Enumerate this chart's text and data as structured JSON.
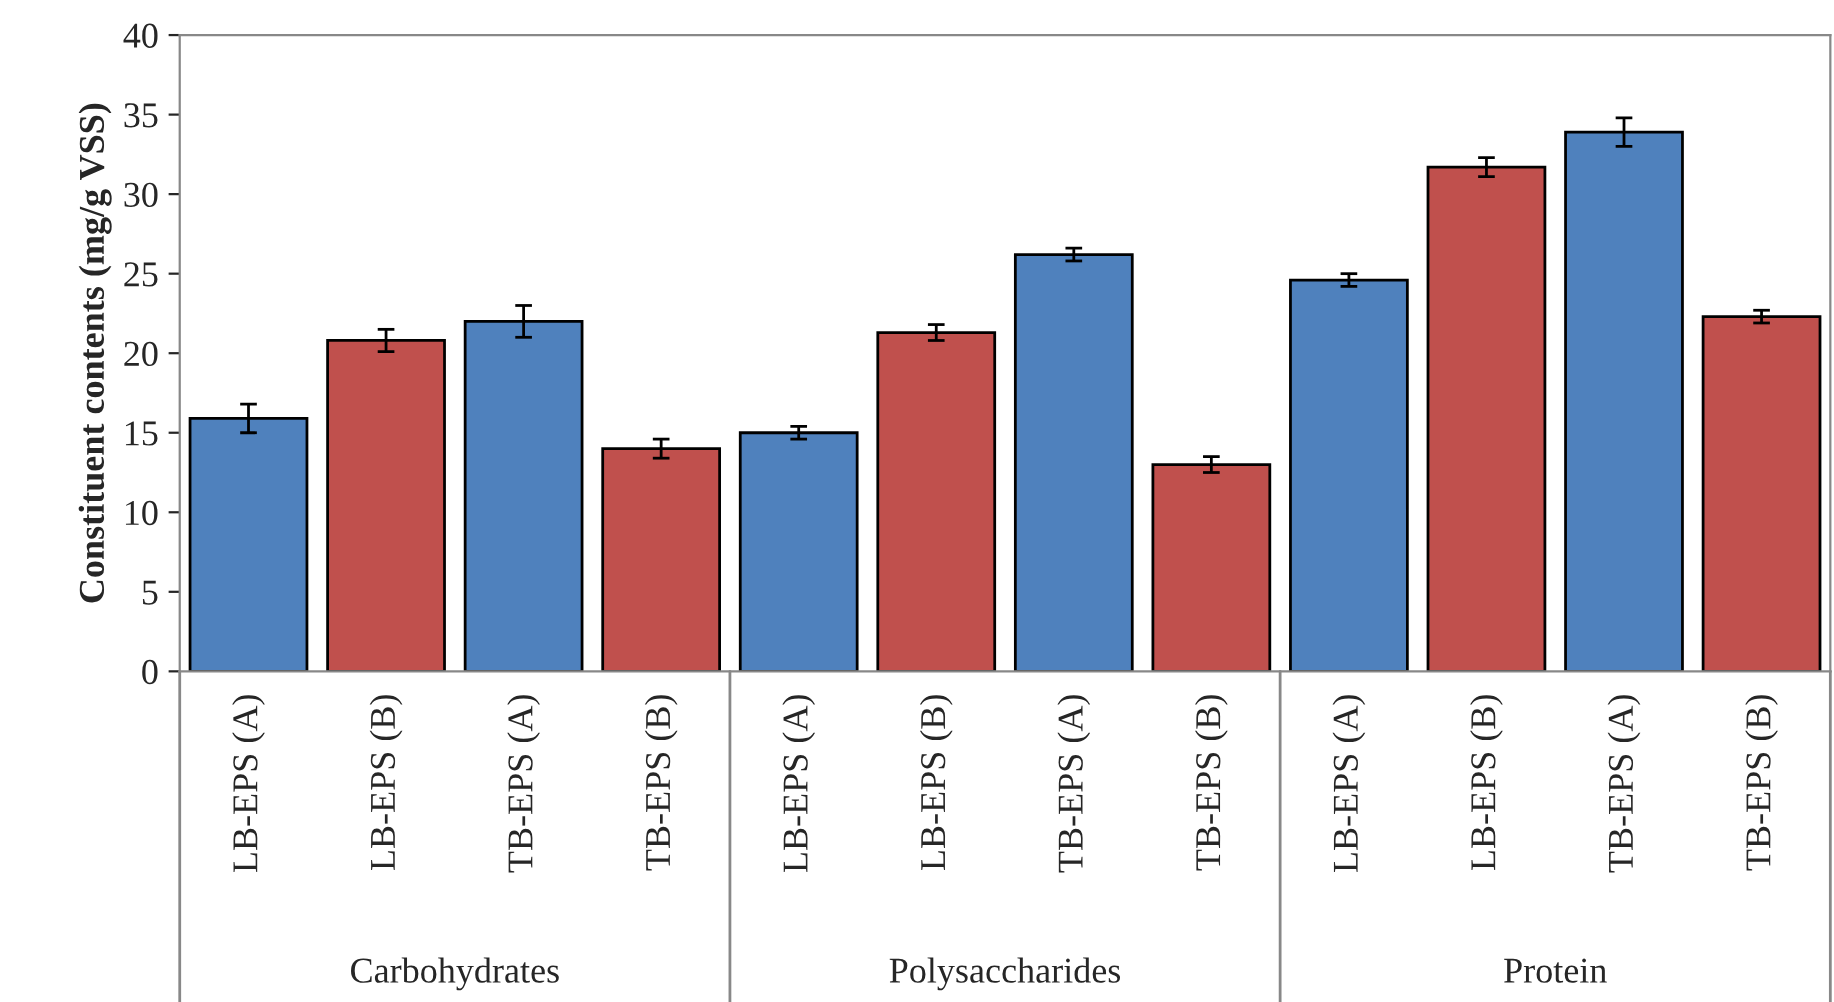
{
  "chart_data": {
    "type": "bar",
    "ylabel": "Constituent contents (mg/g VSS)",
    "categories": [
      "LB-EPS (A)",
      "LB-EPS (B)",
      "TB-EPS (A)",
      "TB-EPS (B)",
      "LB-EPS (A)",
      "LB-EPS (B)",
      "TB-EPS (A)",
      "TB-EPS (B)",
      "LB-EPS (A)",
      "LB-EPS (B)",
      "TB-EPS (A)",
      "TB-EPS (B)"
    ],
    "values": [
      15.9,
      20.8,
      22.0,
      14.0,
      15.0,
      21.3,
      26.2,
      13.0,
      24.6,
      31.7,
      33.9,
      22.3
    ],
    "errors": [
      0.9,
      0.7,
      1.0,
      0.6,
      0.4,
      0.5,
      0.4,
      0.5,
      0.4,
      0.6,
      0.9,
      0.4
    ],
    "colors": [
      "#4f81bd",
      "#c0504d",
      "#4f81bd",
      "#c0504d",
      "#4f81bd",
      "#c0504d",
      "#4f81bd",
      "#c0504d",
      "#4f81bd",
      "#c0504d",
      "#4f81bd",
      "#c0504d"
    ],
    "ylim": [
      0,
      40
    ],
    "yticks": [
      0,
      5,
      10,
      15,
      20,
      25,
      30,
      35,
      40
    ],
    "grid": false,
    "annotations": [
      "Carbohydrates",
      "Polysaccharides",
      "Protein"
    ]
  }
}
